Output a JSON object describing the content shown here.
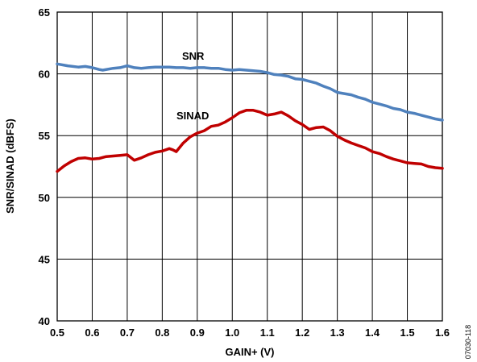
{
  "chart_data": {
    "type": "line",
    "title": "",
    "xlabel": "GAIN+ (V)",
    "ylabel": "SNR/SINAD (dBFS)",
    "xlim": [
      0.5,
      1.6
    ],
    "ylim": [
      40,
      65
    ],
    "x_ticks": [
      "0.5",
      "0.6",
      "0.7",
      "0.8",
      "0.9",
      "1.0",
      "1.1",
      "1.2",
      "1.3",
      "1.4",
      "1.5",
      "1.6"
    ],
    "y_ticks": [
      "40",
      "45",
      "50",
      "55",
      "60",
      "65"
    ],
    "grid": true,
    "series": [
      {
        "name": "SNR",
        "color": "#4f81bd",
        "x": [
          0.5,
          0.53,
          0.56,
          0.58,
          0.6,
          0.62,
          0.63,
          0.66,
          0.68,
          0.7,
          0.72,
          0.74,
          0.76,
          0.78,
          0.8,
          0.82,
          0.84,
          0.86,
          0.88,
          0.9,
          0.92,
          0.94,
          0.96,
          0.98,
          1.0,
          1.02,
          1.04,
          1.06,
          1.08,
          1.1,
          1.12,
          1.14,
          1.16,
          1.18,
          1.2,
          1.22,
          1.24,
          1.26,
          1.28,
          1.3,
          1.32,
          1.34,
          1.36,
          1.38,
          1.4,
          1.42,
          1.44,
          1.46,
          1.48,
          1.5,
          1.52,
          1.54,
          1.56,
          1.58,
          1.6
        ],
        "values": [
          60.8,
          60.65,
          60.55,
          60.6,
          60.5,
          60.35,
          60.3,
          60.45,
          60.5,
          60.65,
          60.5,
          60.45,
          60.5,
          60.55,
          60.55,
          60.55,
          60.5,
          60.5,
          60.45,
          60.5,
          60.5,
          60.45,
          60.45,
          60.35,
          60.3,
          60.35,
          60.3,
          60.25,
          60.2,
          60.1,
          59.95,
          59.9,
          59.8,
          59.6,
          59.55,
          59.4,
          59.25,
          59.0,
          58.8,
          58.5,
          58.4,
          58.3,
          58.1,
          57.95,
          57.7,
          57.55,
          57.4,
          57.2,
          57.1,
          56.9,
          56.8,
          56.65,
          56.5,
          56.35,
          56.25
        ]
      },
      {
        "name": "SINAD",
        "color": "#c00000",
        "x": [
          0.5,
          0.52,
          0.54,
          0.56,
          0.58,
          0.6,
          0.62,
          0.64,
          0.66,
          0.68,
          0.7,
          0.72,
          0.74,
          0.76,
          0.78,
          0.8,
          0.82,
          0.83,
          0.84,
          0.86,
          0.88,
          0.9,
          0.92,
          0.94,
          0.96,
          0.98,
          1.0,
          1.02,
          1.04,
          1.06,
          1.08,
          1.1,
          1.12,
          1.14,
          1.16,
          1.18,
          1.2,
          1.22,
          1.24,
          1.26,
          1.28,
          1.3,
          1.32,
          1.34,
          1.36,
          1.38,
          1.4,
          1.42,
          1.44,
          1.46,
          1.48,
          1.5,
          1.52,
          1.54,
          1.56,
          1.58,
          1.6
        ],
        "values": [
          52.1,
          52.55,
          52.9,
          53.15,
          53.2,
          53.1,
          53.15,
          53.3,
          53.35,
          53.4,
          53.45,
          53.0,
          53.2,
          53.45,
          53.65,
          53.75,
          53.95,
          53.85,
          53.7,
          54.4,
          54.9,
          55.2,
          55.4,
          55.75,
          55.85,
          56.1,
          56.45,
          56.85,
          57.05,
          57.05,
          56.9,
          56.65,
          56.75,
          56.9,
          56.6,
          56.2,
          55.9,
          55.5,
          55.65,
          55.7,
          55.4,
          54.95,
          54.65,
          54.4,
          54.2,
          54.0,
          53.7,
          53.55,
          53.3,
          53.1,
          52.95,
          52.8,
          52.75,
          52.7,
          52.5,
          52.4,
          52.35
        ]
      }
    ],
    "annotations": [
      "SNR",
      "SINAD"
    ]
  },
  "figure_id": "07030-118"
}
